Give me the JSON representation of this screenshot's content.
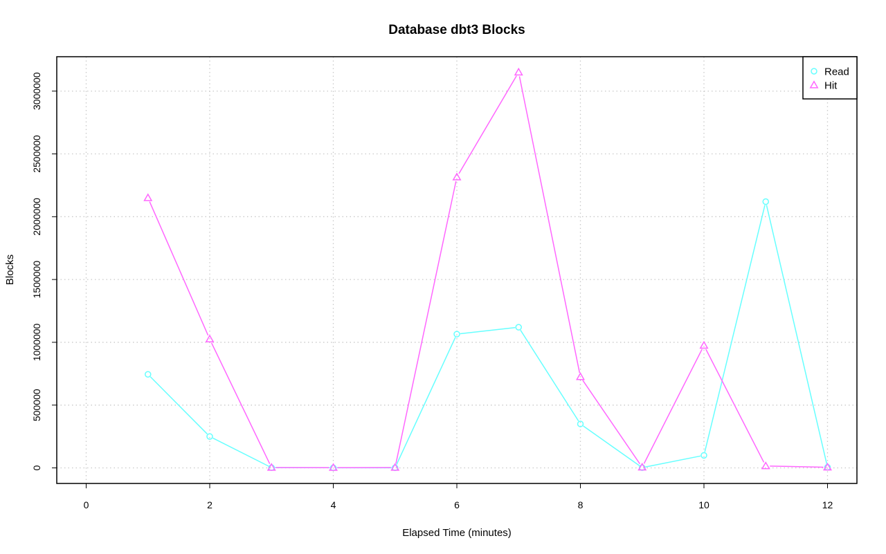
{
  "chart_data": {
    "type": "line",
    "title": "Database dbt3 Blocks",
    "xlabel": "Elapsed Time (minutes)",
    "ylabel": "Blocks",
    "xlim": [
      0,
      12
    ],
    "ylim": [
      0,
      3150000
    ],
    "xticks": [
      0,
      2,
      4,
      6,
      8,
      10,
      12
    ],
    "yticks": [
      0,
      500000,
      1000000,
      1500000,
      2000000,
      2500000,
      3000000
    ],
    "grid": true,
    "legend_position": "top-right",
    "x": [
      1,
      2,
      3,
      4,
      5,
      6,
      7,
      8,
      9,
      10,
      11,
      12
    ],
    "series": [
      {
        "name": "Read",
        "marker": "circle",
        "color": "#66ffff",
        "values": [
          745000,
          250000,
          2000,
          1000,
          1000,
          1065000,
          1120000,
          350000,
          2000,
          100000,
          2120000,
          5000
        ]
      },
      {
        "name": "Hit",
        "marker": "triangle",
        "color": "#ff66ff",
        "values": [
          2150000,
          1025000,
          3000,
          2000,
          3000,
          2315000,
          3150000,
          725000,
          5000,
          975000,
          15000,
          5000
        ]
      }
    ]
  }
}
